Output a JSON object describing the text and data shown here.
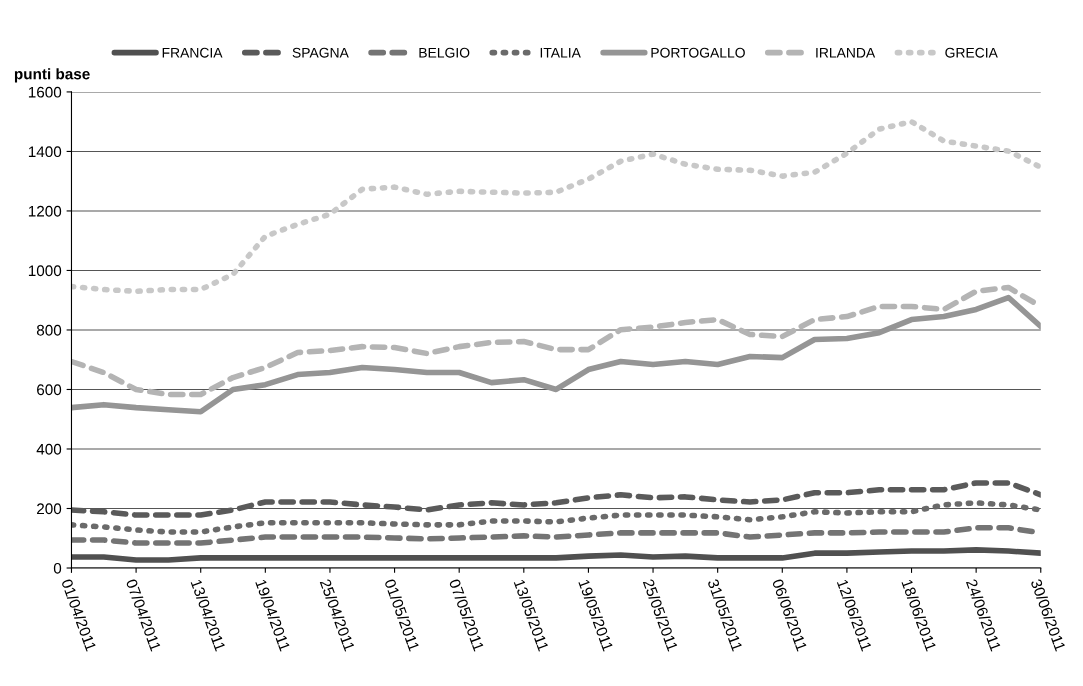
{
  "chart_data": {
    "type": "line",
    "ylabel": "punti base",
    "x": [
      "2011-04-01",
      "2011-04-04",
      "2011-04-07",
      "2011-04-10",
      "2011-04-13",
      "2011-04-16",
      "2011-04-19",
      "2011-04-22",
      "2011-04-25",
      "2011-04-28",
      "2011-05-01",
      "2011-05-04",
      "2011-05-07",
      "2011-05-10",
      "2011-05-13",
      "2011-05-16",
      "2011-05-19",
      "2011-05-22",
      "2011-05-25",
      "2011-05-28",
      "2011-05-31",
      "2011-06-03",
      "2011-06-06",
      "2011-06-09",
      "2011-06-12",
      "2011-06-15",
      "2011-06-18",
      "2011-06-21",
      "2011-06-24",
      "2011-06-27",
      "2011-06-30"
    ],
    "series": [
      {
        "name": "FRANCIA",
        "color": "#505050",
        "line_style": "solid",
        "values": [
          37,
          37,
          27,
          27,
          34,
          34,
          34,
          34,
          34,
          34,
          34,
          34,
          34,
          34,
          34,
          34,
          40,
          44,
          37,
          40,
          34,
          34,
          34,
          50,
          50,
          54,
          57,
          57,
          61,
          57,
          50
        ]
      },
      {
        "name": "SPAGNA",
        "color": "#5a5a5a",
        "line_style": "dashed",
        "values": [
          195,
          189,
          178,
          178,
          178,
          195,
          222,
          222,
          222,
          212,
          205,
          195,
          212,
          219,
          212,
          219,
          236,
          246,
          236,
          239,
          229,
          222,
          229,
          253,
          253,
          263,
          263,
          263,
          286,
          286,
          246
        ]
      },
      {
        "name": "BELGIO",
        "color": "#747474",
        "line_style": "dashed",
        "values": [
          94,
          94,
          84,
          84,
          84,
          94,
          104,
          104,
          104,
          104,
          101,
          98,
          101,
          104,
          108,
          104,
          111,
          118,
          118,
          118,
          118,
          104,
          111,
          118,
          118,
          121,
          121,
          121,
          135,
          135,
          118
        ]
      },
      {
        "name": "ITALIA",
        "color": "#6a6a6a",
        "line_style": "dotted",
        "values": [
          145,
          138,
          128,
          121,
          121,
          138,
          152,
          152,
          152,
          152,
          148,
          145,
          145,
          158,
          158,
          155,
          168,
          178,
          178,
          178,
          172,
          162,
          172,
          189,
          185,
          189,
          189,
          212,
          219,
          212,
          195
        ]
      },
      {
        "name": "PORTOGALLO",
        "color": "#959595",
        "line_style": "solid",
        "values": [
          539,
          549,
          539,
          532,
          525,
          600,
          616,
          650,
          657,
          674,
          667,
          657,
          657,
          623,
          633,
          600,
          667,
          694,
          684,
          694,
          684,
          711,
          707,
          768,
          771,
          791,
          835,
          845,
          869,
          909,
          812
        ]
      },
      {
        "name": "IRLANDA",
        "color": "#b4b4b4",
        "line_style": "dashed",
        "values": [
          694,
          657,
          600,
          583,
          583,
          640,
          674,
          724,
          731,
          744,
          741,
          721,
          744,
          758,
          761,
          734,
          734,
          801,
          810,
          825,
          835,
          785,
          778,
          835,
          845,
          879,
          879,
          869,
          930,
          943,
          879
        ]
      },
      {
        "name": "GRECIA",
        "color": "#c8c8c8",
        "line_style": "dotted",
        "values": [
          946,
          936,
          930,
          936,
          936,
          987,
          1115,
          1155,
          1189,
          1273,
          1280,
          1256,
          1266,
          1263,
          1260,
          1263,
          1307,
          1367,
          1391,
          1357,
          1340,
          1337,
          1317,
          1330,
          1394,
          1475,
          1500,
          1435,
          1418,
          1401,
          1347
        ]
      }
    ],
    "xlim": [
      "2011-04-01",
      "2011-06-30"
    ],
    "xticks": [
      {
        "value": "2011-04-01",
        "label": "01/04/2011"
      },
      {
        "value": "2011-04-07",
        "label": "07/04/2011"
      },
      {
        "value": "2011-04-13",
        "label": "13/04/2011"
      },
      {
        "value": "2011-04-19",
        "label": "19/04/2011"
      },
      {
        "value": "2011-04-25",
        "label": "25/04/2011"
      },
      {
        "value": "2011-05-01",
        "label": "01/05/2011"
      },
      {
        "value": "2011-05-07",
        "label": "07/05/2011"
      },
      {
        "value": "2011-05-13",
        "label": "13/05/2011"
      },
      {
        "value": "2011-05-19",
        "label": "19/05/2011"
      },
      {
        "value": "2011-05-25",
        "label": "25/05/2011"
      },
      {
        "value": "2011-05-31",
        "label": "31/05/2011"
      },
      {
        "value": "2011-06-06",
        "label": "06/06/2011"
      },
      {
        "value": "2011-06-12",
        "label": "12/06/2011"
      },
      {
        "value": "2011-06-18",
        "label": "18/06/2011"
      },
      {
        "value": "2011-06-24",
        "label": "24/06/2011"
      },
      {
        "value": "2011-06-30",
        "label": "30/06/2011"
      }
    ],
    "ylim": [
      0,
      1600
    ],
    "yticks": [
      0,
      200,
      400,
      600,
      800,
      1000,
      1200,
      1400,
      1600
    ],
    "grid": "y",
    "legend": "top"
  }
}
